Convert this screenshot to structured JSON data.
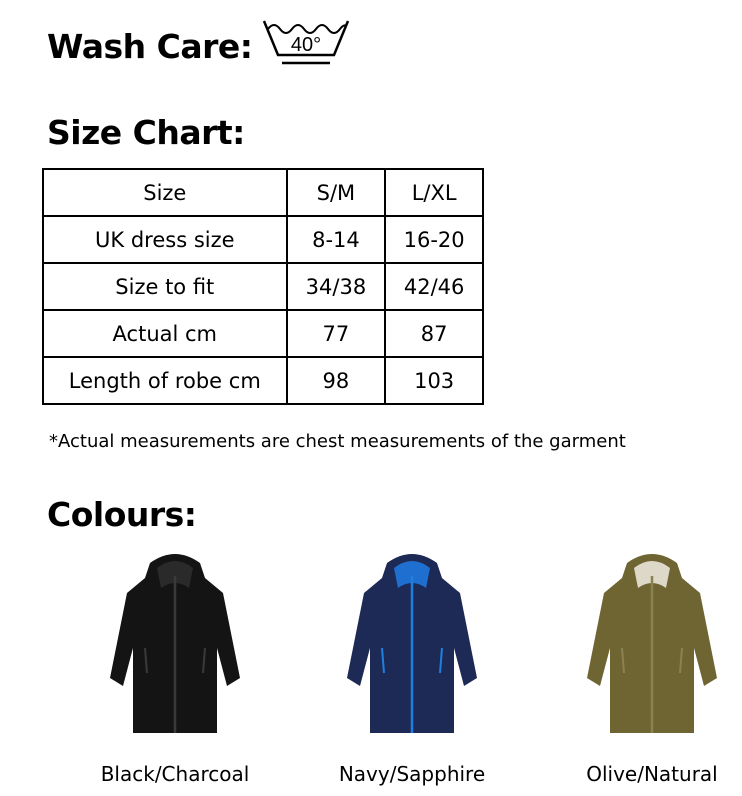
{
  "wash_care": {
    "label": "Wash Care:",
    "icon": "wash-40-degrees-icon",
    "temperature": "40°"
  },
  "size_chart": {
    "title": "Size Chart:",
    "rows": [
      [
        "Size",
        "S/M",
        "L/XL"
      ],
      [
        "UK dress size",
        "8-14",
        "16-20"
      ],
      [
        "Size to fit",
        "34/38",
        "42/46"
      ],
      [
        "Actual cm",
        "77",
        "87"
      ],
      [
        "Length of robe cm",
        "98",
        "103"
      ]
    ],
    "note": "*Actual measurements are chest measurements of the garment"
  },
  "colours": {
    "title": "Colours:",
    "items": [
      {
        "label": "Black/Charcoal",
        "body": "#141414",
        "lining": "#2a2a2a",
        "zip": "#3a3a3a"
      },
      {
        "label": "Navy/Sapphire",
        "body": "#1d2a55",
        "lining": "#1e6fd0",
        "zip": "#1f7fe0"
      },
      {
        "label": "Olive/Natural",
        "body": "#6e6533",
        "lining": "#ddd8c8",
        "zip": "#8a8250"
      }
    ]
  }
}
